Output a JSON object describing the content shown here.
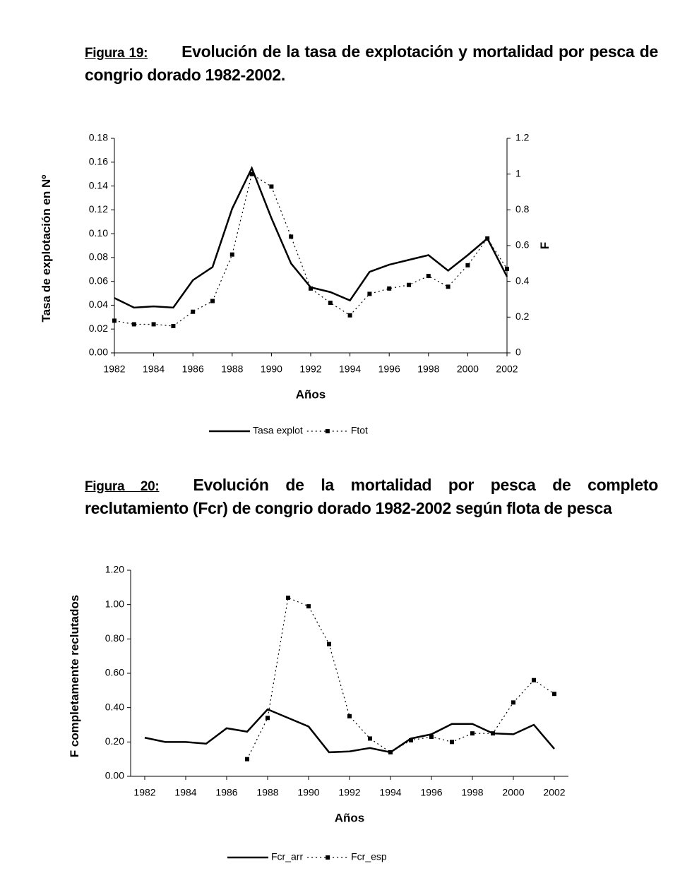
{
  "chart_data": [
    {
      "type": "line",
      "figure_label": "Figura 19:",
      "title": "Evolución de la tasa de explotación y mortalidad por pesca de congrio dorado 1982-2002.",
      "xlabel": "Años",
      "ylabel": "Tasa de explotación en Nº",
      "y2label": "F",
      "x": [
        1982,
        1983,
        1984,
        1985,
        1986,
        1987,
        1988,
        1989,
        1990,
        1991,
        1992,
        1993,
        1994,
        1995,
        1996,
        1997,
        1998,
        1999,
        2000,
        2001,
        2002
      ],
      "xlim": [
        1982,
        2002
      ],
      "xticks": [
        1982,
        1984,
        1986,
        1988,
        1990,
        1992,
        1994,
        1996,
        1998,
        2000,
        2002
      ],
      "ylim": [
        0,
        0.18
      ],
      "yticks": [
        {
          "value": 0,
          "label": "0.00"
        },
        {
          "value": 0.02,
          "label": "0.02"
        },
        {
          "value": 0.04,
          "label": "0.04"
        },
        {
          "value": 0.06,
          "label": "0.06"
        },
        {
          "value": 0.08,
          "label": "0.08"
        },
        {
          "value": 0.1,
          "label": "0.10"
        },
        {
          "value": 0.12,
          "label": "0.12"
        },
        {
          "value": 0.14,
          "label": "0.14"
        },
        {
          "value": 0.16,
          "label": "0.16"
        },
        {
          "value": 0.18,
          "label": "0.18"
        }
      ],
      "y2lim": [
        0,
        1.2
      ],
      "y2ticks": [
        0,
        0.2,
        0.4,
        0.6,
        0.8,
        1,
        1.2
      ],
      "legend": "bottom",
      "series": [
        {
          "name": "Tasa explot",
          "color": "#000000",
          "style": "solid",
          "values": [
            0.046,
            0.038,
            0.039,
            0.038,
            0.061,
            0.072,
            0.121,
            0.155,
            0.113,
            0.075,
            0.055,
            0.051,
            0.044,
            0.068,
            0.074,
            0.078,
            0.082,
            0.069,
            0.082,
            0.096,
            0.064
          ]
        },
        {
          "name": "Ftot",
          "color": "#000000",
          "style": "dotted",
          "marker": "square",
          "axis": "y2",
          "values": [
            0.18,
            0.16,
            0.16,
            0.15,
            0.23,
            0.29,
            0.55,
            1.0,
            0.93,
            0.65,
            0.36,
            0.28,
            0.21,
            0.33,
            0.36,
            0.38,
            0.43,
            0.37,
            0.49,
            0.64,
            0.47
          ]
        }
      ]
    },
    {
      "type": "line",
      "figure_label": "Figura 20:",
      "title": "Evolución de la mortalidad por pesca de completo reclutamiento (Fcr) de congrio dorado 1982-2002 según flota de pesca",
      "xlabel": "Años",
      "ylabel": "F completamente reclutados",
      "x": [
        1982,
        1983,
        1984,
        1985,
        1986,
        1987,
        1988,
        1989,
        1990,
        1991,
        1992,
        1993,
        1994,
        1995,
        1996,
        1997,
        1998,
        1999,
        2000,
        2001,
        2002
      ],
      "xlim": [
        1982,
        2002
      ],
      "xticks": [
        1982,
        1984,
        1986,
        1988,
        1990,
        1992,
        1994,
        1996,
        1998,
        2000,
        2002
      ],
      "ylim": [
        0,
        1.2
      ],
      "yticks": [
        {
          "value": 0,
          "label": "0.00"
        },
        {
          "value": 0.2,
          "label": "0.20"
        },
        {
          "value": 0.4,
          "label": "0.40"
        },
        {
          "value": 0.6,
          "label": "0.60"
        },
        {
          "value": 0.8,
          "label": "0.80"
        },
        {
          "value": 1,
          "label": "1.00"
        },
        {
          "value": 1.2,
          "label": "1.20"
        }
      ],
      "legend": "bottom",
      "series": [
        {
          "name": "Fcr_arr",
          "color": "#000000",
          "style": "solid",
          "values": [
            0.225,
            0.2,
            0.2,
            0.19,
            0.28,
            0.26,
            0.39,
            0.34,
            0.29,
            0.14,
            0.145,
            0.165,
            0.14,
            0.22,
            0.245,
            0.305,
            0.305,
            0.25,
            0.245,
            0.3,
            0.16
          ]
        },
        {
          "name": "Fcr_esp",
          "color": "#000000",
          "style": "dotted",
          "marker": "square",
          "values": [
            null,
            null,
            null,
            null,
            null,
            0.1,
            0.34,
            1.04,
            0.99,
            0.77,
            0.35,
            0.22,
            0.14,
            0.21,
            0.23,
            0.2,
            0.25,
            0.25,
            0.43,
            0.56,
            0.48
          ]
        }
      ]
    }
  ]
}
